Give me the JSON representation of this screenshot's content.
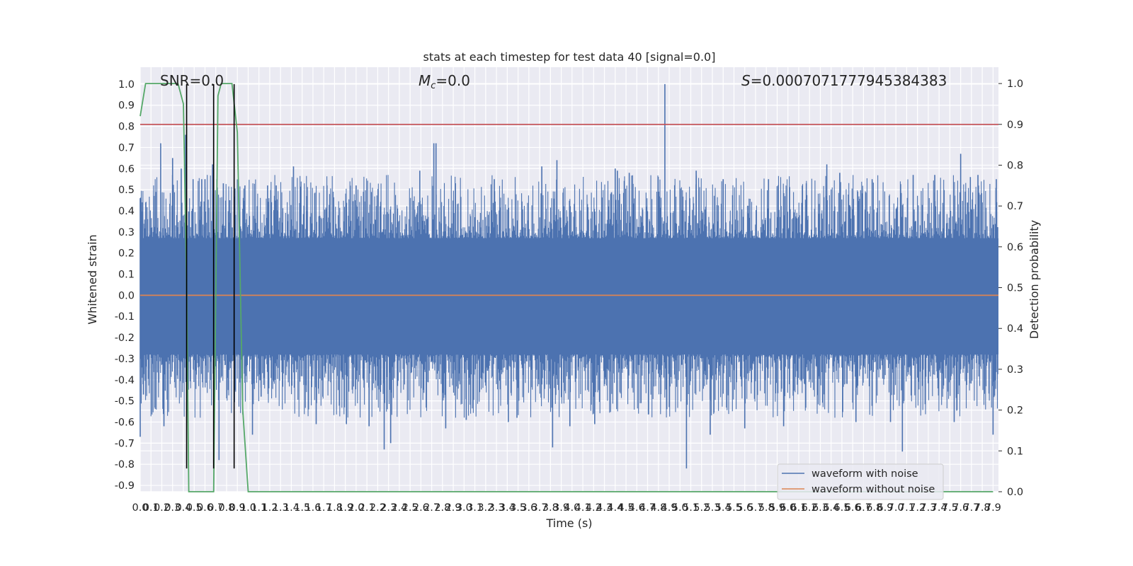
{
  "chart_data": {
    "type": "line",
    "title": "stats at each timestep for test data 40 [signal=0.0]",
    "xlabel": "Time (s)",
    "ylabel": "Whitened strain",
    "y2label": "Detection probability",
    "xlim": [
      0.0,
      7.95
    ],
    "ylim": [
      -0.93,
      1.08
    ],
    "y2lim": [
      -0.0,
      1.04
    ],
    "x_ticks": [
      "0.0",
      "0.1",
      "0.2",
      "0.3",
      "0.4",
      "0.5",
      "0.6",
      "0.7",
      "0.8",
      "0.9",
      "1.0",
      "1.1",
      "1.2",
      "1.3",
      "1.4",
      "1.5",
      "1.6",
      "1.7",
      "1.8",
      "1.9",
      "2.0",
      "2.1",
      "2.2",
      "2.3",
      "2.4",
      "2.5",
      "2.6",
      "2.7",
      "2.8",
      "2.9",
      "3.0",
      "3.1",
      "3.2",
      "3.3",
      "3.4",
      "3.5",
      "3.6",
      "3.7",
      "3.8",
      "3.9",
      "4.0",
      "4.1",
      "4.2",
      "4.3",
      "4.4",
      "4.5",
      "4.6",
      "4.7",
      "4.8",
      "4.9",
      "5.0",
      "5.1",
      "5.2",
      "5.3",
      "5.4",
      "5.5",
      "5.6",
      "5.7",
      "5.8",
      "5.9",
      "6.0",
      "6.1",
      "6.2",
      "6.3",
      "6.4",
      "6.5",
      "6.6",
      "6.7",
      "6.8",
      "6.9",
      "7.0",
      "7.1",
      "7.2",
      "7.3",
      "7.4",
      "7.5",
      "7.6",
      "7.7",
      "7.8",
      "7.9"
    ],
    "y_ticks": [
      "-0.9",
      "-0.8",
      "-0.7",
      "-0.6",
      "-0.5",
      "-0.4",
      "-0.3",
      "-0.2",
      "-0.1",
      "0.0",
      "0.1",
      "0.2",
      "0.3",
      "0.4",
      "0.5",
      "0.6",
      "0.7",
      "0.8",
      "0.9",
      "1.0"
    ],
    "y2_ticks": [
      "0.0",
      "0.1",
      "0.2",
      "0.3",
      "0.4",
      "0.5",
      "0.6",
      "0.7",
      "0.8",
      "0.9",
      "1.0"
    ],
    "annotations": {
      "snr": "SNR=0.0",
      "mc_symbol": "M",
      "mc_sub": "c",
      "mc_value": "=0.0",
      "s_symbol": "S",
      "s_value": "=0.0007071777945384383"
    },
    "series": [
      {
        "name": "waveform with noise",
        "color": "#4c72b0",
        "envelope_upper": 0.27,
        "envelope_lower": -0.28,
        "peaks": [
          [
            0.0,
            0.46
          ],
          [
            0.0,
            -0.67
          ],
          [
            0.02,
            0.44
          ],
          [
            0.03,
            -0.47
          ],
          [
            0.19,
            0.72
          ],
          [
            0.22,
            -0.62
          ],
          [
            0.3,
            0.65
          ],
          [
            0.38,
            0.6
          ],
          [
            0.42,
            0.76
          ],
          [
            0.43,
            -0.35
          ],
          [
            0.49,
            0.55
          ],
          [
            0.57,
            0.55
          ],
          [
            0.6,
            0.55
          ],
          [
            0.67,
            0.62
          ],
          [
            0.71,
            0.55
          ],
          [
            0.73,
            -0.78
          ],
          [
            0.77,
            0.53
          ],
          [
            0.83,
            0.45
          ],
          [
            0.97,
            0.52
          ],
          [
            1.04,
            -0.66
          ],
          [
            1.12,
            -0.48
          ],
          [
            1.18,
            0.52
          ],
          [
            1.26,
            0.52
          ],
          [
            1.42,
            0.61
          ],
          [
            1.54,
            0.47
          ],
          [
            1.63,
            -0.61
          ],
          [
            1.73,
            0.52
          ],
          [
            1.91,
            -0.61
          ],
          [
            2.0,
            0.52
          ],
          [
            2.12,
            -0.62
          ],
          [
            2.26,
            -0.73
          ],
          [
            2.32,
            -0.7
          ],
          [
            2.59,
            0.59
          ],
          [
            2.72,
            0.72
          ],
          [
            2.74,
            0.72
          ],
          [
            2.83,
            -0.63
          ],
          [
            3.02,
            -0.59
          ],
          [
            3.28,
            0.55
          ],
          [
            3.41,
            -0.6
          ],
          [
            3.49,
            -0.58
          ],
          [
            3.72,
            0.61
          ],
          [
            3.82,
            -0.72
          ],
          [
            3.86,
            0.64
          ],
          [
            3.98,
            -0.62
          ],
          [
            4.21,
            -0.61
          ],
          [
            4.4,
            0.6
          ],
          [
            4.42,
            0.59
          ],
          [
            4.53,
            0.58
          ],
          [
            4.86,
            1.0
          ],
          [
            5.06,
            -0.82
          ],
          [
            5.15,
            0.59
          ],
          [
            5.28,
            -0.66
          ],
          [
            5.4,
            0.55
          ],
          [
            5.6,
            -0.63
          ],
          [
            5.82,
            0.55
          ],
          [
            5.96,
            -0.62
          ],
          [
            6.17,
            0.53
          ],
          [
            6.36,
            0.62
          ],
          [
            6.48,
            0.58
          ],
          [
            6.63,
            -0.6
          ],
          [
            6.78,
            0.55
          ],
          [
            6.95,
            -0.6
          ],
          [
            7.06,
            -0.74
          ],
          [
            7.16,
            0.57
          ],
          [
            7.36,
            0.57
          ],
          [
            7.54,
            -0.6
          ],
          [
            7.6,
            0.67
          ],
          [
            7.69,
            0.56
          ],
          [
            7.76,
            0.57
          ],
          [
            7.9,
            -0.66
          ],
          [
            7.93,
            0.55
          ]
        ]
      },
      {
        "name": "waveform without noise",
        "color": "#dd8452",
        "value": 0.0
      },
      {
        "name": "",
        "axis": "y2",
        "color": "#55a868",
        "x": [
          0.0,
          0.05,
          0.1,
          0.15,
          0.2,
          0.25,
          0.3,
          0.35,
          0.4,
          0.43,
          0.45,
          0.5,
          0.55,
          0.6,
          0.65,
          0.68,
          0.72,
          0.75,
          0.8,
          0.85,
          0.9,
          0.95,
          1.0,
          1.5,
          2.0,
          3.0,
          4.0,
          5.0,
          6.0,
          7.0,
          7.9
        ],
        "values": [
          0.92,
          1.0,
          1.0,
          1.0,
          1.0,
          1.0,
          1.0,
          1.0,
          0.95,
          0.5,
          0.0,
          0.0,
          0.0,
          0.0,
          0.0,
          0.0,
          0.97,
          1.0,
          1.0,
          1.0,
          0.88,
          0.2,
          0.0,
          0.0,
          0.0,
          0.0,
          0.0,
          0.0,
          0.0,
          0.0,
          0.0
        ]
      },
      {
        "name": "",
        "axis": "y2",
        "color": "#c44e52",
        "value": 0.9
      }
    ],
    "vlines": {
      "color": "#000000",
      "x": [
        0.43,
        0.68,
        0.87
      ],
      "ymin": -0.82,
      "ymax": 1.0
    },
    "legend": {
      "placement": "lower-right",
      "entries": [
        "waveform with noise",
        "waveform without noise"
      ]
    },
    "grid": true
  }
}
